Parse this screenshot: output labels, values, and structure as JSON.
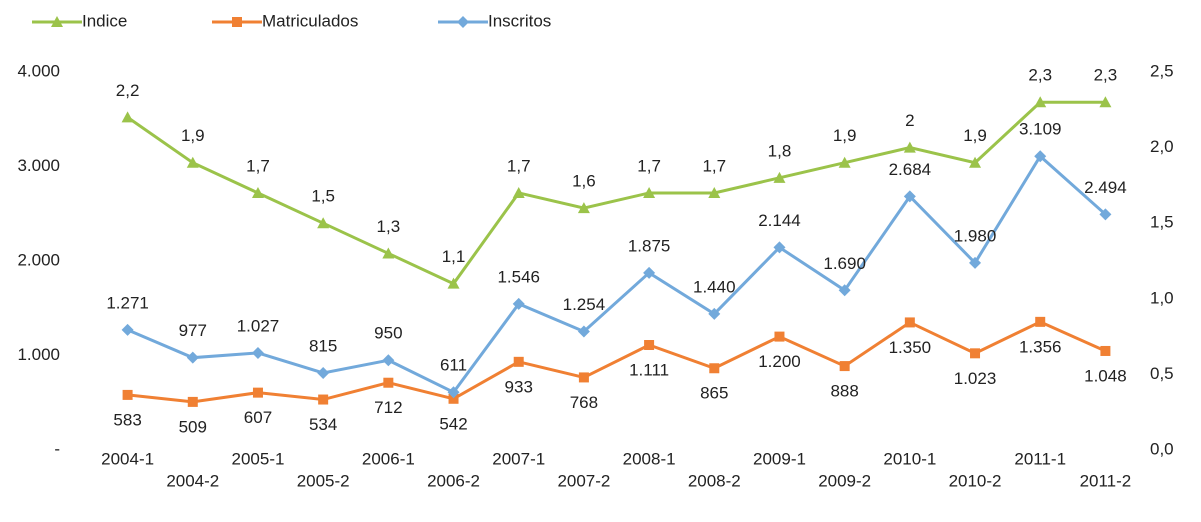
{
  "chart_data": {
    "type": "line",
    "categories": [
      "2004-1",
      "2004-2",
      "2005-1",
      "2005-2",
      "2006-1",
      "2006-2",
      "2007-1",
      "2007-2",
      "2008-1",
      "2008-2",
      "2009-1",
      "2009-2",
      "2010-1",
      "2010-2",
      "2011-1",
      "2011-2"
    ],
    "series": [
      {
        "name": "Indice",
        "color": "#9bc34a",
        "marker": "triangle",
        "axis": "y2",
        "values": [
          2.2,
          1.9,
          1.7,
          1.5,
          1.3,
          1.1,
          1.7,
          1.6,
          1.7,
          1.7,
          1.8,
          1.9,
          2,
          1.9,
          2.3,
          2.3
        ],
        "value_labels": [
          "2,2",
          "1,9",
          "1,7",
          "1,5",
          "1,3",
          "1,1",
          "1,7",
          "1,6",
          "1,7",
          "1,7",
          "1,8",
          "1,9",
          "2",
          "1,9",
          "2,3",
          "2,3"
        ]
      },
      {
        "name": "Matriculados",
        "color": "#f08033",
        "marker": "square",
        "values": [
          583,
          509,
          607,
          534,
          712,
          542,
          933,
          768,
          1111,
          865,
          1200,
          888,
          1350,
          1023,
          1356,
          1048
        ],
        "value_labels": [
          "583",
          "509",
          "607",
          "534",
          "712",
          "542",
          "933",
          "768",
          "1.111",
          "865",
          "1.200",
          "888",
          "1.350",
          "1.023",
          "1.356",
          "1.048"
        ]
      },
      {
        "name": "Inscritos",
        "color": "#72a9db",
        "marker": "diamond",
        "values": [
          1271,
          977,
          1027,
          815,
          950,
          611,
          1546,
          1254,
          1875,
          1440,
          2144,
          1690,
          2684,
          1980,
          3109,
          2494
        ],
        "value_labels": [
          "1.271",
          "977",
          "1.027",
          "815",
          "950",
          "611",
          "1.546",
          "1.254",
          "1.875",
          "1.440",
          "2.144",
          "1.690",
          "2.684",
          "1.980",
          "3.109",
          "2.494"
        ]
      }
    ],
    "ylim": [
      0,
      4000
    ],
    "yticks": [
      {
        "value": 0,
        "label": "-"
      },
      {
        "value": 1000,
        "label": "1.000"
      },
      {
        "value": 2000,
        "label": "2.000"
      },
      {
        "value": 3000,
        "label": "3.000"
      },
      {
        "value": 4000,
        "label": "4.000"
      }
    ],
    "y2lim": [
      0,
      2.5
    ],
    "y2ticks": [
      {
        "value": 0,
        "label": "0,0"
      },
      {
        "value": 0.5,
        "label": "0,5"
      },
      {
        "value": 1,
        "label": "1,0"
      },
      {
        "value": 1.5,
        "label": "1,5"
      },
      {
        "value": 2,
        "label": "2,0"
      },
      {
        "value": 2.5,
        "label": "2,5"
      }
    ],
    "legend": "top-left"
  }
}
